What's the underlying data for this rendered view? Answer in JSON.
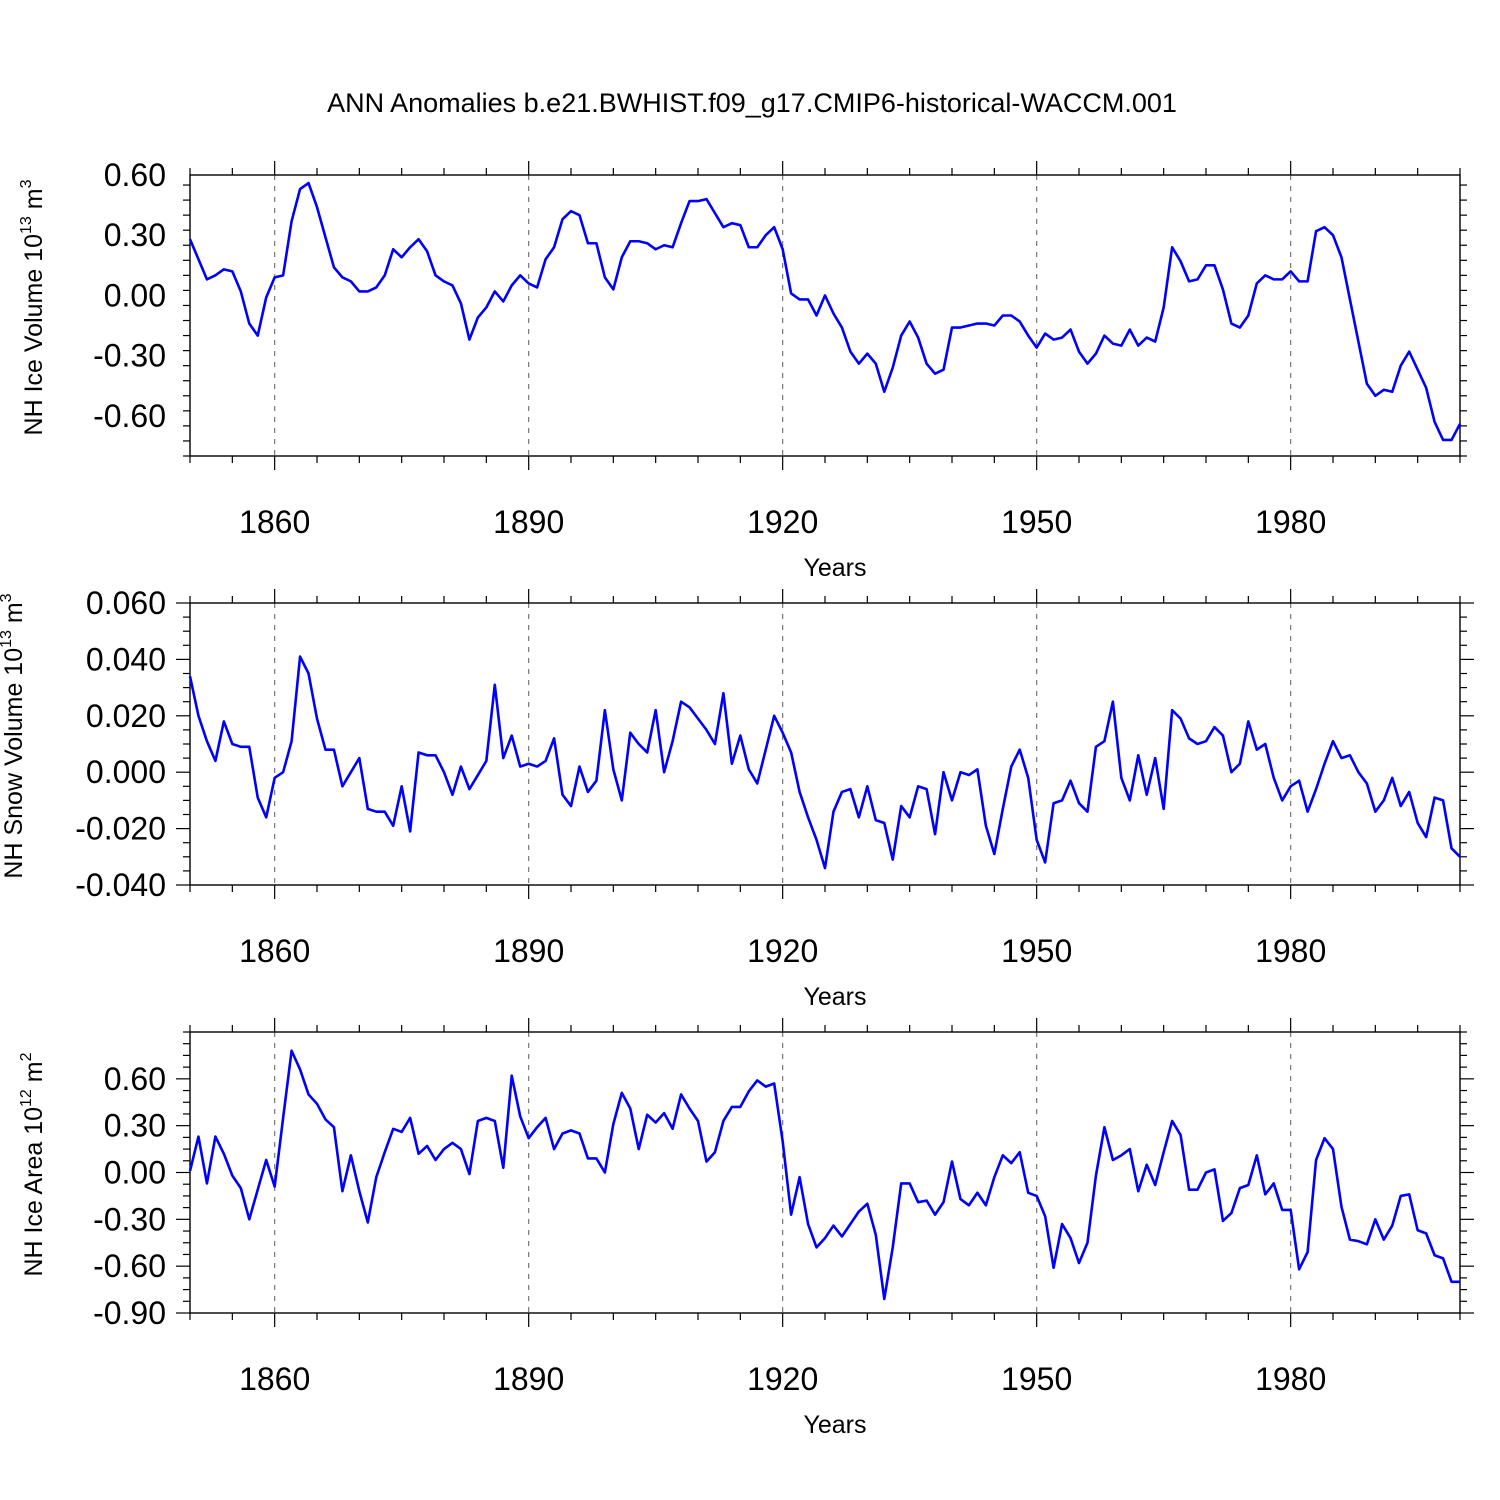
{
  "title": "ANN Anomalies b.e21.BWHIST.f09_g17.CMIP6-historical-WACCM.001",
  "line_color": "#0000ff",
  "chart_data": [
    {
      "type": "line",
      "name": "ice-volume",
      "ylabel": "NH Ice Volume",
      "ylabel_unit_prefix": "10",
      "ylabel_unit_exp": "13",
      "ylabel_unit_base": " m",
      "ylabel_unit_pow": "3",
      "xlabel": "Years",
      "xlim": [
        1850,
        2000
      ],
      "ylim": [
        -0.8,
        0.6
      ],
      "xticks": [
        1860,
        1890,
        1920,
        1950,
        1980
      ],
      "xtick_labels": [
        "1860",
        "1890",
        "1920",
        "1950",
        "1980"
      ],
      "yticks": [
        0.6,
        0.3,
        0.0,
        -0.3,
        -0.6
      ],
      "ytick_labels": [
        "0.60",
        "0.30",
        "0.00",
        "-0.30",
        "-0.60"
      ],
      "x_start": 1850,
      "values": [
        0.28,
        0.18,
        0.08,
        0.1,
        0.13,
        0.12,
        0.02,
        -0.14,
        -0.2,
        -0.01,
        0.09,
        0.1,
        0.37,
        0.53,
        0.56,
        0.44,
        0.29,
        0.14,
        0.09,
        0.07,
        0.02,
        0.02,
        0.04,
        0.1,
        0.23,
        0.19,
        0.24,
        0.28,
        0.22,
        0.1,
        0.07,
        0.05,
        -0.04,
        -0.22,
        -0.11,
        -0.06,
        0.02,
        -0.03,
        0.05,
        0.1,
        0.06,
        0.04,
        0.18,
        0.24,
        0.38,
        0.42,
        0.4,
        0.26,
        0.26,
        0.09,
        0.03,
        0.19,
        0.27,
        0.27,
        0.26,
        0.23,
        0.25,
        0.24,
        0.36,
        0.47,
        0.47,
        0.48,
        0.41,
        0.34,
        0.36,
        0.35,
        0.24,
        0.24,
        0.3,
        0.34,
        0.23,
        0.01,
        -0.02,
        -0.02,
        -0.1,
        0.0,
        -0.09,
        -0.16,
        -0.28,
        -0.34,
        -0.29,
        -0.34,
        -0.48,
        -0.36,
        -0.2,
        -0.13,
        -0.21,
        -0.34,
        -0.39,
        -0.37,
        -0.16,
        -0.16,
        -0.15,
        -0.14,
        -0.14,
        -0.15,
        -0.1,
        -0.1,
        -0.13,
        -0.2,
        -0.26,
        -0.19,
        -0.22,
        -0.21,
        -0.17,
        -0.28,
        -0.34,
        -0.29,
        -0.2,
        -0.24,
        -0.25,
        -0.17,
        -0.25,
        -0.21,
        -0.23,
        -0.06,
        0.24,
        0.17,
        0.07,
        0.08,
        0.15,
        0.15,
        0.03,
        -0.14,
        -0.16,
        -0.1,
        0.06,
        0.1,
        0.08,
        0.08,
        0.12,
        0.07,
        0.07,
        0.32,
        0.34,
        0.3,
        0.19,
        -0.02,
        -0.23,
        -0.44,
        -0.5,
        -0.47,
        -0.48,
        -0.35,
        -0.28,
        -0.37,
        -0.46,
        -0.63,
        -0.72,
        -0.72,
        -0.64
      ]
    },
    {
      "type": "line",
      "name": "snow-volume",
      "ylabel": "NH Snow Volume",
      "ylabel_unit_prefix": "10",
      "ylabel_unit_exp": "13",
      "ylabel_unit_base": " m",
      "ylabel_unit_pow": "3",
      "xlabel": "Years",
      "xlim": [
        1850,
        2000
      ],
      "ylim": [
        -0.04,
        0.06
      ],
      "xticks": [
        1860,
        1890,
        1920,
        1950,
        1980
      ],
      "xtick_labels": [
        "1860",
        "1890",
        "1920",
        "1950",
        "1980"
      ],
      "yticks": [
        0.06,
        0.04,
        0.02,
        0.0,
        -0.02,
        -0.04
      ],
      "ytick_labels": [
        "0.060",
        "0.040",
        "0.020",
        "0.000",
        "-0.020",
        "-0.040"
      ],
      "x_start": 1850,
      "values": [
        0.034,
        0.02,
        0.011,
        0.004,
        0.018,
        0.01,
        0.009,
        0.009,
        -0.009,
        -0.016,
        -0.002,
        0.0,
        0.011,
        0.041,
        0.035,
        0.019,
        0.008,
        0.008,
        -0.005,
        0.0,
        0.005,
        -0.013,
        -0.014,
        -0.014,
        -0.019,
        -0.005,
        -0.021,
        0.007,
        0.006,
        0.006,
        0.0,
        -0.008,
        0.002,
        -0.006,
        -0.001,
        0.004,
        0.031,
        0.005,
        0.013,
        0.002,
        0.003,
        0.002,
        0.004,
        0.012,
        -0.008,
        -0.012,
        0.002,
        -0.007,
        -0.003,
        0.022,
        0.001,
        -0.01,
        0.014,
        0.01,
        0.007,
        0.022,
        0.0,
        0.011,
        0.025,
        0.023,
        0.019,
        0.015,
        0.01,
        0.028,
        0.003,
        0.013,
        0.001,
        -0.004,
        0.008,
        0.02,
        0.014,
        0.007,
        -0.007,
        -0.016,
        -0.024,
        -0.034,
        -0.014,
        -0.007,
        -0.006,
        -0.016,
        -0.005,
        -0.017,
        -0.018,
        -0.031,
        -0.012,
        -0.016,
        -0.005,
        -0.006,
        -0.022,
        0.0,
        -0.01,
        0.0,
        -0.001,
        0.001,
        -0.019,
        -0.029,
        -0.013,
        0.002,
        0.008,
        -0.002,
        -0.024,
        -0.032,
        -0.011,
        -0.01,
        -0.003,
        -0.011,
        -0.014,
        0.009,
        0.011,
        0.025,
        -0.002,
        -0.01,
        0.006,
        -0.008,
        0.005,
        -0.013,
        0.022,
        0.019,
        0.012,
        0.01,
        0.011,
        0.016,
        0.013,
        0.0,
        0.003,
        0.018,
        0.008,
        0.01,
        -0.002,
        -0.01,
        -0.005,
        -0.003,
        -0.014,
        -0.006,
        0.003,
        0.011,
        0.005,
        0.006,
        0.0,
        -0.004,
        -0.014,
        -0.01,
        -0.002,
        -0.012,
        -0.007,
        -0.018,
        -0.023,
        -0.009,
        -0.01,
        -0.027,
        -0.03
      ]
    },
    {
      "type": "line",
      "name": "ice-area",
      "ylabel": "NH Ice Area",
      "ylabel_unit_prefix": "10",
      "ylabel_unit_exp": "12",
      "ylabel_unit_base": " m",
      "ylabel_unit_pow": "2",
      "xlabel": "Years",
      "xlim": [
        1850,
        2000
      ],
      "ylim": [
        -0.9,
        0.9
      ],
      "xticks": [
        1860,
        1890,
        1920,
        1950,
        1980
      ],
      "xtick_labels": [
        "1860",
        "1890",
        "1920",
        "1950",
        "1980"
      ],
      "yticks": [
        0.6,
        0.3,
        0.0,
        -0.3,
        -0.6,
        -0.9
      ],
      "ytick_labels": [
        "0.60",
        "0.30",
        "0.00",
        "-0.30",
        "-0.60",
        "-0.90"
      ],
      "x_start": 1850,
      "values": [
        0.01,
        0.23,
        -0.07,
        0.23,
        0.12,
        -0.02,
        -0.1,
        -0.3,
        -0.11,
        0.08,
        -0.09,
        0.35,
        0.78,
        0.66,
        0.5,
        0.44,
        0.34,
        0.29,
        -0.12,
        0.11,
        -0.12,
        -0.32,
        -0.03,
        0.13,
        0.28,
        0.26,
        0.35,
        0.12,
        0.17,
        0.08,
        0.15,
        0.19,
        0.15,
        -0.01,
        0.33,
        0.35,
        0.33,
        0.03,
        0.62,
        0.36,
        0.22,
        0.29,
        0.35,
        0.15,
        0.25,
        0.27,
        0.25,
        0.09,
        0.09,
        0.0,
        0.31,
        0.51,
        0.41,
        0.15,
        0.37,
        0.32,
        0.38,
        0.28,
        0.5,
        0.41,
        0.33,
        0.07,
        0.13,
        0.33,
        0.42,
        0.42,
        0.52,
        0.59,
        0.55,
        0.57,
        0.2,
        -0.27,
        -0.03,
        -0.33,
        -0.48,
        -0.42,
        -0.34,
        -0.41,
        -0.33,
        -0.25,
        -0.2,
        -0.4,
        -0.81,
        -0.48,
        -0.07,
        -0.07,
        -0.19,
        -0.18,
        -0.27,
        -0.19,
        0.07,
        -0.17,
        -0.21,
        -0.13,
        -0.21,
        -0.03,
        0.11,
        0.06,
        0.13,
        -0.13,
        -0.15,
        -0.28,
        -0.61,
        -0.33,
        -0.42,
        -0.58,
        -0.45,
        -0.02,
        0.29,
        0.08,
        0.11,
        0.15,
        -0.12,
        0.05,
        -0.08,
        0.13,
        0.33,
        0.24,
        -0.11,
        -0.11,
        0.0,
        0.02,
        -0.31,
        -0.26,
        -0.1,
        -0.08,
        0.11,
        -0.14,
        -0.07,
        -0.24,
        -0.24,
        -0.62,
        -0.51,
        0.08,
        0.22,
        0.15,
        -0.22,
        -0.43,
        -0.44,
        -0.46,
        -0.3,
        -0.43,
        -0.34,
        -0.15,
        -0.14,
        -0.37,
        -0.39,
        -0.53,
        -0.55,
        -0.7,
        -0.7
      ]
    }
  ]
}
